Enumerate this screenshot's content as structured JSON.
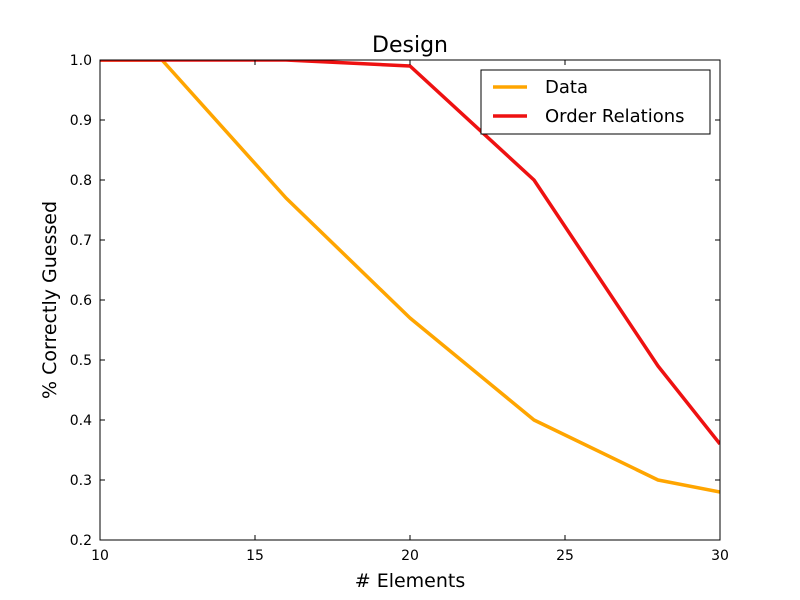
{
  "chart_data": {
    "type": "line",
    "title": "Design",
    "xlabel": "# Elements",
    "ylabel": "% Correctly Guessed",
    "xlim": [
      10,
      30
    ],
    "ylim": [
      0.2,
      1.0
    ],
    "xticks": [
      10,
      15,
      20,
      25,
      30
    ],
    "yticks": [
      0.2,
      0.3,
      0.4,
      0.5,
      0.6,
      0.7,
      0.8,
      0.9,
      1.0
    ],
    "xtick_labels": [
      "10",
      "15",
      "20",
      "25",
      "30"
    ],
    "ytick_labels": [
      "0.2",
      "0.3",
      "0.4",
      "0.5",
      "0.6",
      "0.7",
      "0.8",
      "0.9",
      "1.0"
    ],
    "grid": false,
    "legend_position": "top-right",
    "series": [
      {
        "name": "Data",
        "color": "#FFA500",
        "x": [
          10,
          12,
          16,
          20,
          24,
          28,
          30
        ],
        "y": [
          1.0,
          1.0,
          0.77,
          0.57,
          0.4,
          0.3,
          0.28
        ]
      },
      {
        "name": "Order Relations",
        "color": "#EE1111",
        "x": [
          10,
          12,
          16,
          20,
          24,
          28,
          30
        ],
        "y": [
          1.0,
          1.0,
          1.0,
          0.99,
          0.8,
          0.49,
          0.36
        ]
      }
    ]
  }
}
